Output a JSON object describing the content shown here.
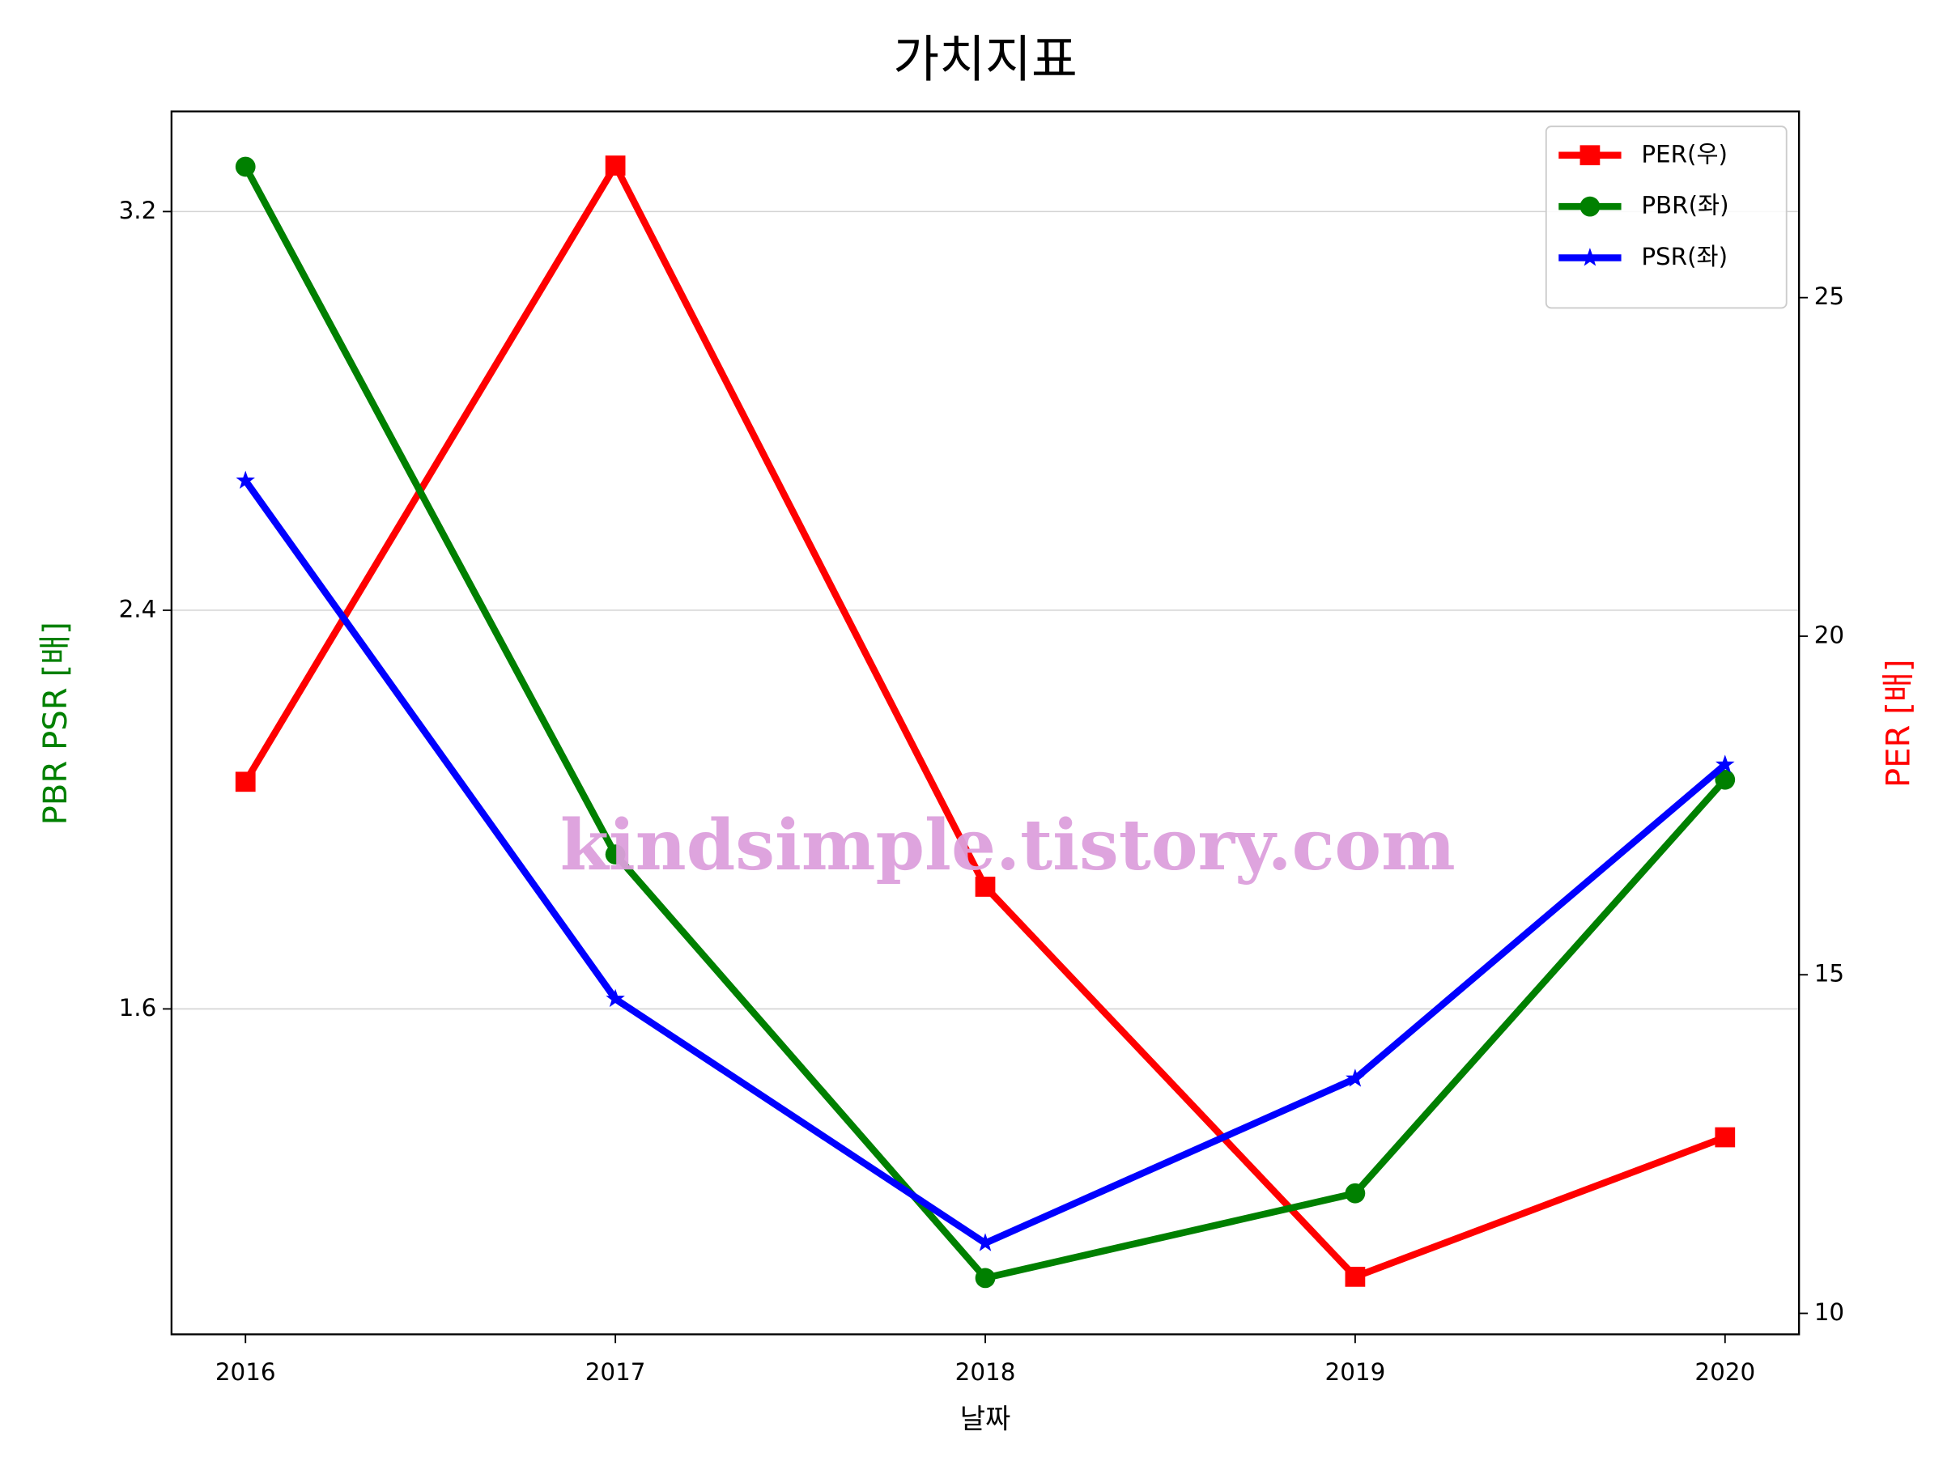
{
  "chart_data": {
    "type": "line",
    "title": "가치지표",
    "xlabel": "날짜",
    "ylabel": "PBR PSR [배]",
    "y2label": "PER [배]",
    "watermark": "kindsimple.tistory.com",
    "x": [
      2016,
      2017,
      2018,
      2019,
      2020
    ],
    "xlim": [
      2015.8,
      2020.2
    ],
    "xticks": [
      2016,
      2017,
      2018,
      2019,
      2020
    ],
    "ylim": [
      0.947,
      3.401
    ],
    "yticks": [
      1.6,
      2.4,
      3.2
    ],
    "y2lim": [
      9.69,
      27.75
    ],
    "y2ticks": [
      10,
      15,
      20,
      25
    ],
    "grid": true,
    "legend": "upper right",
    "series": [
      {
        "name": "PER(우)",
        "color": "#ff0000",
        "marker": "square",
        "axis": "y2",
        "values": [
          17.85,
          26.95,
          16.3,
          10.54,
          12.6
        ]
      },
      {
        "name": "PBR(좌)",
        "color": "#008000",
        "marker": "circle",
        "values": [
          3.29,
          1.91,
          1.06,
          1.23,
          2.06
        ]
      },
      {
        "name": "PSR(좌)",
        "color": "#0000ff",
        "marker": "star",
        "values": [
          2.66,
          1.62,
          1.13,
          1.46,
          2.09
        ]
      }
    ]
  }
}
